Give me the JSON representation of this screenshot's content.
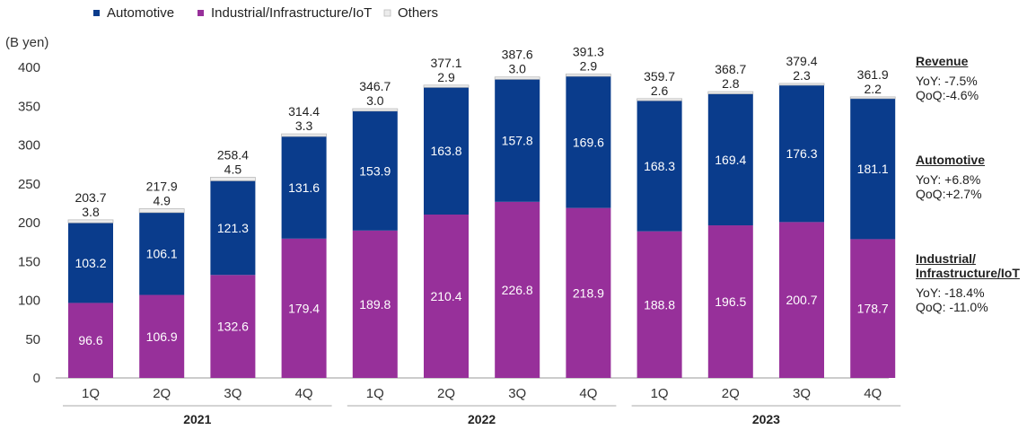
{
  "chart_data": {
    "type": "bar",
    "stacked": true,
    "ylabel": "(B yen)",
    "ylim": [
      0,
      400
    ],
    "yticks": [
      0,
      50,
      100,
      150,
      200,
      250,
      300,
      350,
      400
    ],
    "categories": [
      "1Q",
      "2Q",
      "3Q",
      "4Q",
      "1Q",
      "2Q",
      "3Q",
      "4Q",
      "1Q",
      "2Q",
      "3Q",
      "4Q"
    ],
    "groups": [
      {
        "label": "2021",
        "start": 0,
        "end": 3
      },
      {
        "label": "2022",
        "start": 4,
        "end": 7
      },
      {
        "label": "2023",
        "start": 8,
        "end": 11
      }
    ],
    "series": [
      {
        "name": "Industrial/Infrastructure/IoT",
        "color": "#97309a",
        "values": [
          96.6,
          106.9,
          132.6,
          179.4,
          189.8,
          210.4,
          226.8,
          218.9,
          188.8,
          196.5,
          200.7,
          178.7
        ]
      },
      {
        "name": "Automotive",
        "color": "#0a3c8c",
        "values": [
          103.2,
          106.1,
          121.3,
          131.6,
          153.9,
          163.8,
          157.8,
          169.6,
          168.3,
          169.4,
          176.3,
          181.1
        ]
      },
      {
        "name": "Others",
        "color": "#ececec",
        "values": [
          3.8,
          4.9,
          4.5,
          3.3,
          3.0,
          2.9,
          3.0,
          2.9,
          2.6,
          2.8,
          2.3,
          2.2
        ]
      }
    ],
    "totals": [
      203.7,
      217.9,
      258.4,
      314.4,
      346.7,
      377.1,
      387.6,
      391.3,
      359.7,
      368.7,
      379.4,
      361.9
    ],
    "legend": [
      "Automotive",
      "Industrial/Infrastructure/IoT",
      "Others"
    ],
    "legend_position": "top-left",
    "grid": false
  },
  "side_notes": [
    {
      "title": "Revenue",
      "lines": [
        "YoY: -7.5%",
        "QoQ:-4.6%"
      ]
    },
    {
      "title": "Automotive",
      "lines": [
        "YoY: +6.8%",
        "QoQ:+2.7%"
      ]
    },
    {
      "title": "Industrial/ Infrastructure/IoT",
      "title_lines": [
        "Industrial/",
        "Infrastructure/IoT"
      ],
      "lines": [
        "YoY:  -18.4%",
        "QoQ: -11.0%"
      ]
    }
  ]
}
